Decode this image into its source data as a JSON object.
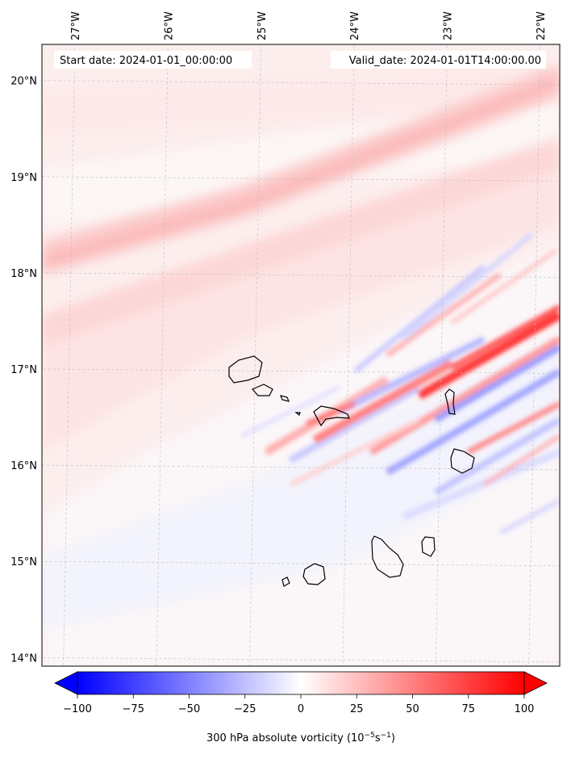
{
  "map": {
    "start_date_label": "Start date: 2024-01-01_00:00:00",
    "valid_date_label": "Valid_date: 2024-01-01T14:00:00.00",
    "lon_labels": [
      "27°W",
      "26°W",
      "25°W",
      "24°W",
      "23°W",
      "22°W"
    ],
    "lat_labels": [
      "20°N",
      "19°N",
      "18°N",
      "17°N",
      "16°N",
      "15°N",
      "14°N"
    ],
    "lon_values": [
      -27,
      -26,
      -25,
      -24,
      -23,
      -22
    ],
    "lat_values": [
      20,
      19,
      18,
      17,
      16,
      15,
      14
    ],
    "extent": {
      "lon": [
        -27.35,
        -21.8
      ],
      "lat": [
        13.95,
        20.45
      ]
    },
    "field": "300 hPa absolute vorticity",
    "features": [
      "coastlines",
      "gridlines"
    ]
  },
  "colorbar": {
    "label_main": "300 hPa absolute vorticity (10",
    "label_exp1": "−5",
    "label_mid": "s",
    "label_exp2": "−1",
    "label_end": ")",
    "tick_labels": [
      "−100",
      "−75",
      "−50",
      "−25",
      "0",
      "25",
      "50",
      "75",
      "100"
    ],
    "tick_values": [
      -100,
      -75,
      -50,
      -25,
      0,
      25,
      50,
      75,
      100
    ],
    "range": [
      -100,
      100
    ],
    "colormap": "bwr",
    "extend": "both",
    "colors": {
      "min": "#0000ff",
      "mid": "#ffffff",
      "max": "#ff0000"
    }
  }
}
